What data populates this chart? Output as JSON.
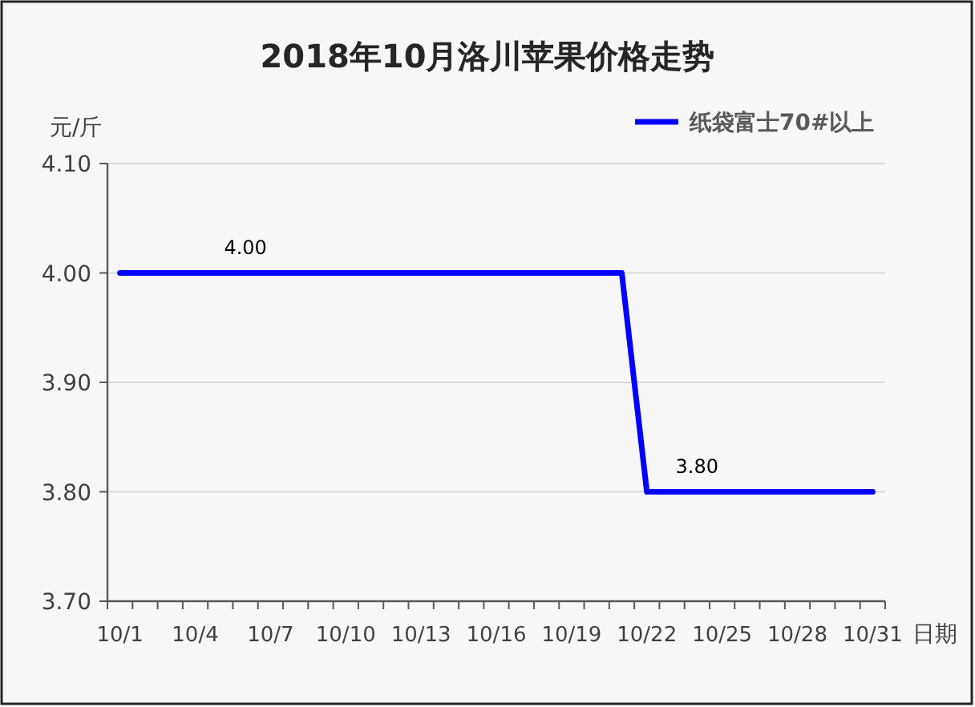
{
  "chart_data": {
    "type": "line",
    "title": "2018年10月洛川苹果价格走势",
    "ylabel": "元/斤",
    "xlabel": "日期",
    "categories": [
      "10/1",
      null,
      null,
      "10/4",
      null,
      null,
      "10/7",
      null,
      null,
      "10/10",
      null,
      null,
      "10/13",
      null,
      null,
      "10/16",
      null,
      null,
      "10/19",
      null,
      null,
      "10/22",
      null,
      null,
      "10/25",
      null,
      null,
      "10/28",
      null,
      null,
      "10/31"
    ],
    "series": [
      {
        "name": "纸袋富士70#以上",
        "color": "#0000ff",
        "values": [
          4.0,
          4.0,
          4.0,
          4.0,
          4.0,
          4.0,
          4.0,
          4.0,
          4.0,
          4.0,
          4.0,
          4.0,
          4.0,
          4.0,
          4.0,
          4.0,
          4.0,
          4.0,
          4.0,
          4.0,
          4.0,
          3.8,
          3.8,
          3.8,
          3.8,
          3.8,
          3.8,
          3.8,
          3.8,
          3.8,
          3.8
        ],
        "value_labels": [
          null,
          null,
          null,
          null,
          null,
          "4.00",
          null,
          null,
          null,
          null,
          null,
          null,
          null,
          null,
          null,
          null,
          null,
          null,
          null,
          null,
          null,
          null,
          null,
          "3.80",
          null,
          null,
          null,
          null,
          null,
          null,
          null
        ]
      }
    ],
    "ylim": [
      3.7,
      4.1
    ],
    "yticks": [
      {
        "value": 3.7,
        "label": "3.70"
      },
      {
        "value": 3.8,
        "label": "3.80"
      },
      {
        "value": 3.9,
        "label": "3.90"
      },
      {
        "value": 4.0,
        "label": "4.00"
      },
      {
        "value": 4.1,
        "label": "4.10"
      }
    ],
    "grid": "y",
    "legend": "top right",
    "line_style": "solid"
  }
}
